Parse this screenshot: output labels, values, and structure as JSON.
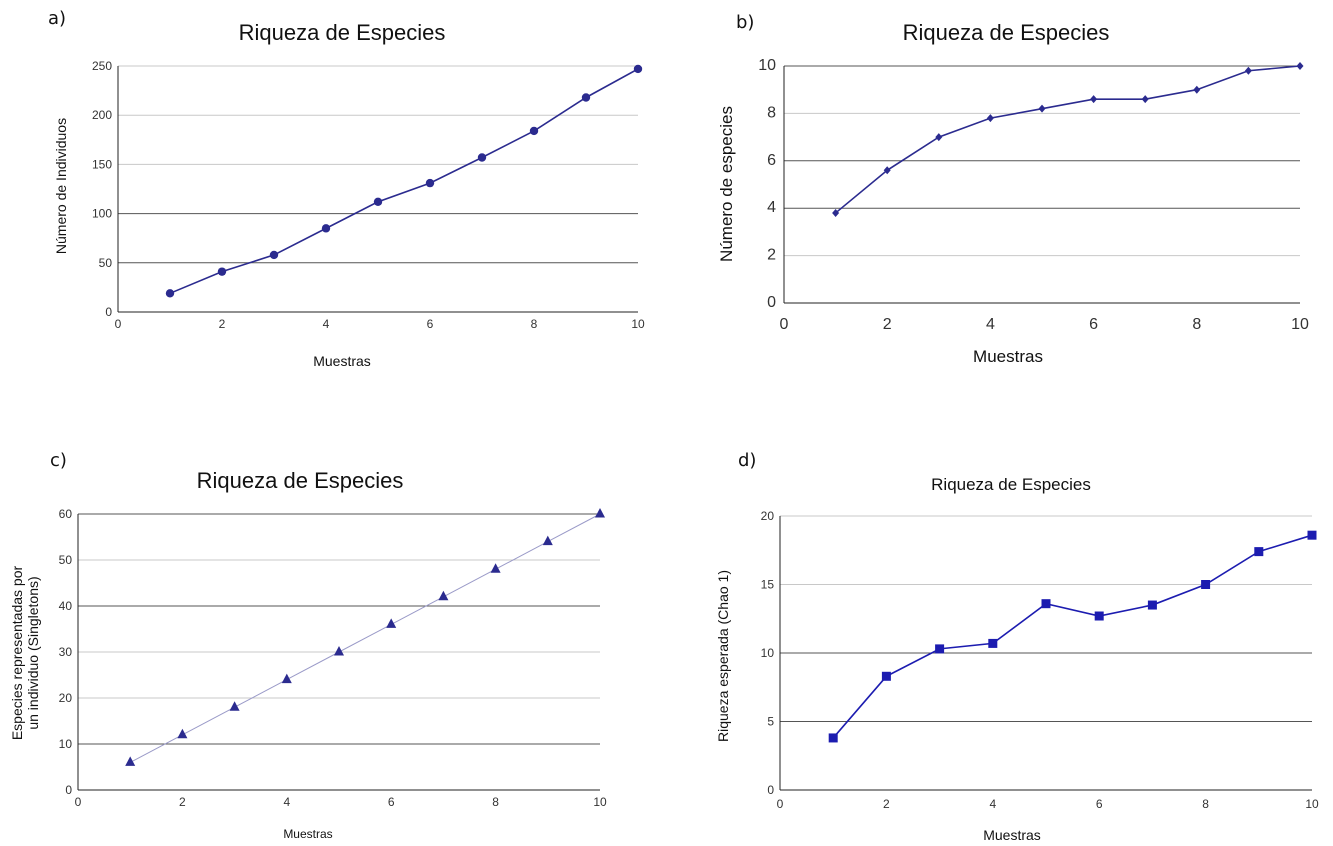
{
  "chart_data": [
    {
      "panel": "a)",
      "type": "line",
      "marker": "circle",
      "title": "Riqueza de Especies",
      "xlabel": "Muestras",
      "ylabel": "Número de Individuos",
      "xlim": [
        0,
        10
      ],
      "ylim": [
        0,
        250
      ],
      "xticks": [
        0,
        2,
        4,
        6,
        8,
        10
      ],
      "yticks": [
        0,
        50,
        100,
        150,
        200,
        250
      ],
      "grid": true,
      "color": "#2b2b8f",
      "x": [
        1,
        2,
        3,
        4,
        5,
        6,
        7,
        8,
        9,
        10
      ],
      "values": [
        19,
        41,
        58,
        85,
        112,
        131,
        157,
        184,
        218,
        247
      ]
    },
    {
      "panel": "b)",
      "type": "line",
      "marker": "diamond",
      "title": "Riqueza de Especies",
      "xlabel": "Muestras",
      "ylabel": "Número de especies",
      "xlim": [
        0,
        10
      ],
      "ylim": [
        0,
        10
      ],
      "xticks": [
        0,
        2,
        4,
        6,
        8,
        10
      ],
      "yticks": [
        0,
        2,
        4,
        6,
        8,
        10
      ],
      "grid": true,
      "color": "#2b2b8f",
      "x": [
        1,
        2,
        3,
        4,
        5,
        6,
        7,
        8,
        9,
        10
      ],
      "values": [
        3.8,
        5.6,
        7.0,
        7.8,
        8.2,
        8.6,
        8.6,
        9.0,
        9.8,
        10.0
      ]
    },
    {
      "panel": "c)",
      "type": "line",
      "marker": "triangle",
      "title": "Riqueza de Especies",
      "xlabel": "Muestras",
      "ylabel_lines": [
        "Especies representadas por",
        "un individuo (Singletons)"
      ],
      "xlim": [
        0,
        10
      ],
      "ylim": [
        0,
        60
      ],
      "xticks": [
        0,
        2,
        4,
        6,
        8,
        10
      ],
      "yticks": [
        0,
        10,
        20,
        30,
        40,
        50,
        60
      ],
      "grid": true,
      "color": "#2b2b8f",
      "line_color": "#9a9ac8",
      "x": [
        1,
        2,
        3,
        4,
        5,
        6,
        7,
        8,
        9,
        10
      ],
      "values": [
        6,
        12,
        18,
        24,
        30,
        36,
        42,
        48,
        54,
        60
      ]
    },
    {
      "panel": "d)",
      "type": "line",
      "marker": "square",
      "title": "Riqueza de Especies",
      "xlabel": "Muestras",
      "ylabel": "Riqueza esperada (Chao 1)",
      "xlim": [
        0,
        10
      ],
      "ylim": [
        0,
        20
      ],
      "xticks": [
        0,
        2,
        4,
        6,
        8,
        10
      ],
      "yticks": [
        0,
        5,
        10,
        15,
        20
      ],
      "grid": true,
      "color": "#1c1cb0",
      "x": [
        1,
        2,
        3,
        4,
        5,
        6,
        7,
        8,
        9,
        10
      ],
      "values": [
        3.8,
        8.3,
        10.3,
        10.7,
        13.6,
        12.7,
        13.5,
        15.0,
        17.4,
        18.6
      ]
    }
  ]
}
